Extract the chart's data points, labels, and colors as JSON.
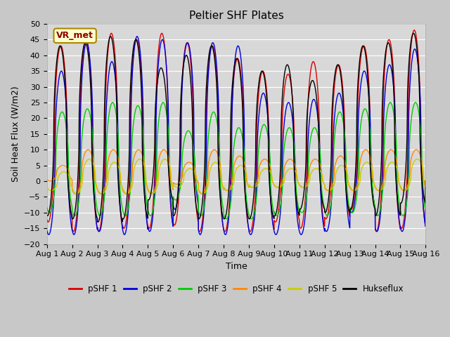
{
  "title": "Peltier SHF Plates",
  "xlabel": "Time",
  "ylabel": "Soil Heat Flux (W/m2)",
  "ylim": [
    -20,
    50
  ],
  "background_color": "#d8d8d8",
  "fig_background": "#c8c8c8",
  "legend_label": "VR_met",
  "series_names": [
    "pSHF 1",
    "pSHF 2",
    "pSHF 3",
    "pSHF 4",
    "pSHF 5",
    "Hukseflux"
  ],
  "series_colors": [
    "#dd0000",
    "#0000dd",
    "#00cc00",
    "#ff8800",
    "#cccc00",
    "#000000"
  ],
  "tick_labels": [
    "Aug 1",
    "Aug 2",
    "Aug 3",
    "Aug 4",
    "Aug 5",
    "Aug 6",
    "Aug 7",
    "Aug 8",
    "Aug 9",
    "Aug 10",
    "Aug 11",
    "Aug 12",
    "Aug 13",
    "Aug 14",
    "Aug 15",
    "Aug 16"
  ],
  "grid_color": "#ffffff",
  "title_fontsize": 11,
  "axis_fontsize": 9,
  "tick_fontsize": 8
}
